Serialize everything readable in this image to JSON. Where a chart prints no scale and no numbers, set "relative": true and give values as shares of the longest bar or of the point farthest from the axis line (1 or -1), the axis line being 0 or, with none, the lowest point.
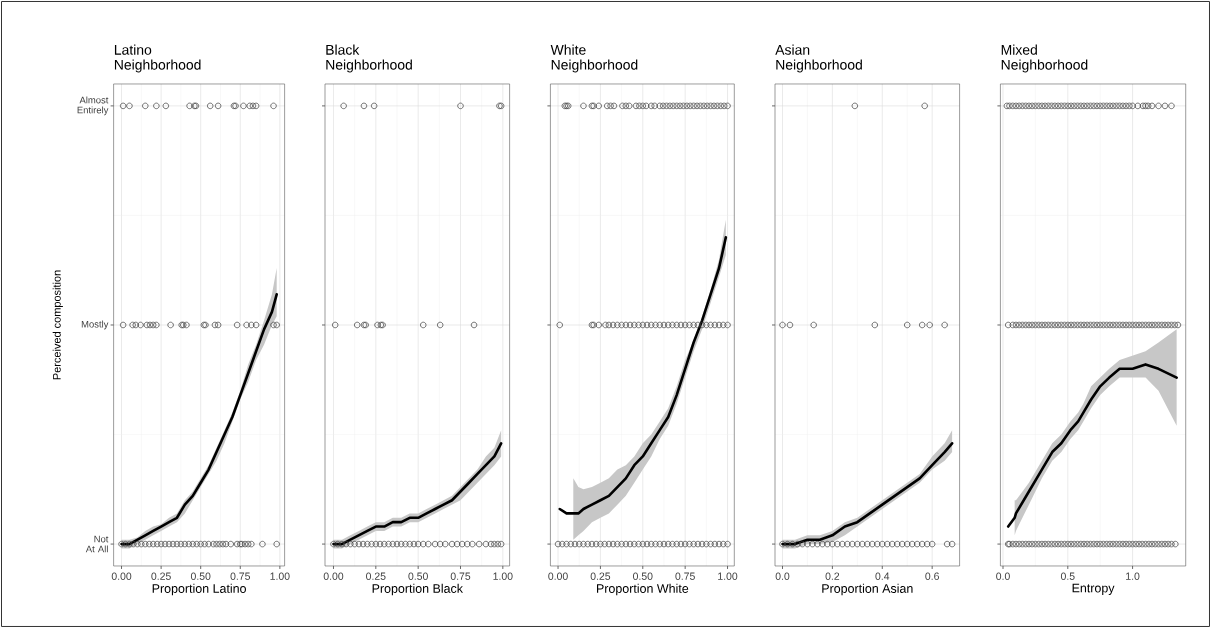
{
  "chart_data": [
    {
      "type": "scatter",
      "title": "Latino Neighborhood",
      "xlabel": "Proportion Latino",
      "ylabel": "Perceived composition",
      "xlim": [
        -0.05,
        1.03
      ],
      "xticks": [
        {
          "value": 0,
          "label": "0.00"
        },
        {
          "value": 0.25,
          "label": "0.25"
        },
        {
          "value": 0.5,
          "label": "0.50"
        },
        {
          "value": 0.75,
          "label": "0.75"
        },
        {
          "value": 1,
          "label": "1.00"
        }
      ],
      "relative": true,
      "annotations": [
        "Not At All",
        "Mostly",
        "Almost Entirely"
      ],
      "grid": true,
      "marker": "circle",
      "series": [
        {
          "type": "scatter",
          "color": "#3c3c3c",
          "x": [
            0,
            0.025,
            0.05,
            0.075,
            0.1,
            0.125,
            0.15,
            0.175,
            0.2,
            0.225,
            0.25,
            0.275,
            0.3,
            0.325,
            0.35,
            0.375,
            0.4,
            0.425,
            0.45,
            0.475,
            0.5,
            0.525,
            0.55,
            0.58,
            0.6,
            0.62,
            0.64,
            0.66,
            0.69,
            0.73,
            0.75,
            0.76,
            0.78,
            0.8,
            0.82,
            0.89,
            0.98
          ],
          "values": [
            0,
            0,
            0,
            0,
            0,
            0,
            0,
            0,
            0,
            0,
            0,
            0,
            0,
            0,
            0,
            0,
            0,
            0,
            0,
            0,
            0,
            0,
            0,
            0,
            0,
            0,
            0,
            0,
            0,
            0,
            0,
            0,
            0,
            0,
            0,
            0,
            0
          ]
        },
        {
          "type": "scatter",
          "color": "#3c3c3c",
          "x": [
            0.01,
            0.07,
            0.09,
            0.12,
            0.16,
            0.18,
            0.2,
            0.22,
            0.31,
            0.38,
            0.39,
            0.41,
            0.52,
            0.53,
            0.59,
            0.61,
            0.73,
            0.79,
            0.82,
            0.85,
            0.96,
            0.98
          ],
          "values": [
            0.5,
            0.5,
            0.5,
            0.5,
            0.5,
            0.5,
            0.5,
            0.5,
            0.5,
            0.5,
            0.5,
            0.5,
            0.5,
            0.5,
            0.5,
            0.5,
            0.5,
            0.5,
            0.5,
            0.5,
            0.5,
            0.5
          ]
        },
        {
          "type": "scatter",
          "color": "#3c3c3c",
          "x": [
            0.01,
            0.05,
            0.15,
            0.22,
            0.28,
            0.43,
            0.46,
            0.47,
            0.56,
            0.61,
            0.71,
            0.72,
            0.77,
            0.81,
            0.83,
            0.85,
            0.96
          ],
          "values": [
            1,
            1,
            1,
            1,
            1,
            1,
            1,
            1,
            1,
            1,
            1,
            1,
            1,
            1,
            1,
            1,
            1
          ]
        },
        {
          "type": "line",
          "color": "#000000",
          "marker": "none",
          "x": [
            0,
            0.05,
            0.1,
            0.15,
            0.2,
            0.25,
            0.3,
            0.35,
            0.4,
            0.45,
            0.5,
            0.55,
            0.6,
            0.65,
            0.7,
            0.75,
            0.8,
            0.85,
            0.9,
            0.95,
            0.98
          ],
          "values": [
            0,
            0,
            0.01,
            0.02,
            0.03,
            0.04,
            0.05,
            0.06,
            0.09,
            0.11,
            0.14,
            0.17,
            0.21,
            0.25,
            0.29,
            0.34,
            0.39,
            0.44,
            0.49,
            0.53,
            0.57
          ],
          "lower": [
            -0.01,
            -0.01,
            0,
            0.01,
            0.02,
            0.03,
            0.04,
            0.05,
            0.07,
            0.1,
            0.13,
            0.16,
            0.19,
            0.23,
            0.28,
            0.33,
            0.37,
            0.42,
            0.455,
            0.5,
            0.52
          ],
          "upper": [
            0.01,
            0.01,
            0.015,
            0.03,
            0.04,
            0.045,
            0.06,
            0.07,
            0.1,
            0.12,
            0.15,
            0.18,
            0.22,
            0.26,
            0.3,
            0.35,
            0.41,
            0.455,
            0.51,
            0.57,
            0.63
          ]
        }
      ]
    },
    {
      "type": "scatter",
      "title": "Black Neighborhood",
      "xlabel": "Proportion Black",
      "xlim": [
        -0.05,
        1.04
      ],
      "xticks": [
        {
          "value": 0,
          "label": "0.00"
        },
        {
          "value": 0.25,
          "label": "0.25"
        },
        {
          "value": 0.5,
          "label": "0.50"
        },
        {
          "value": 0.75,
          "label": "0.75"
        },
        {
          "value": 1,
          "label": "1.00"
        }
      ],
      "relative": true,
      "tick_labels": "x",
      "grid": true,
      "marker": "circle",
      "series": [
        {
          "type": "scatter",
          "color": "#3c3c3c",
          "x": [
            0,
            0.025,
            0.05,
            0.075,
            0.1,
            0.125,
            0.15,
            0.175,
            0.2,
            0.225,
            0.25,
            0.275,
            0.3,
            0.325,
            0.35,
            0.375,
            0.4,
            0.425,
            0.45,
            0.475,
            0.5,
            0.53,
            0.56,
            0.6,
            0.63,
            0.66,
            0.7,
            0.73,
            0.76,
            0.79,
            0.82,
            0.86,
            0.9,
            0.93,
            0.95,
            0.97,
            0.99
          ],
          "values": [
            0,
            0,
            0,
            0,
            0,
            0,
            0,
            0,
            0,
            0,
            0,
            0,
            0,
            0,
            0,
            0,
            0,
            0,
            0,
            0,
            0,
            0,
            0,
            0,
            0,
            0,
            0,
            0,
            0,
            0,
            0,
            0,
            0,
            0,
            0,
            0,
            0
          ]
        },
        {
          "type": "scatter",
          "color": "#3c3c3c",
          "x": [
            0.01,
            0.14,
            0.18,
            0.19,
            0.26,
            0.28,
            0.29,
            0.53,
            0.63,
            0.83
          ],
          "values": [
            0.5,
            0.5,
            0.5,
            0.5,
            0.5,
            0.5,
            0.5,
            0.5,
            0.5,
            0.5
          ]
        },
        {
          "type": "scatter",
          "color": "#3c3c3c",
          "x": [
            0.06,
            0.18,
            0.24,
            0.75,
            0.98,
            0.99
          ],
          "values": [
            1,
            1,
            1,
            1,
            1,
            1
          ]
        },
        {
          "type": "line",
          "color": "#000000",
          "marker": "none",
          "x": [
            0,
            0.05,
            0.1,
            0.15,
            0.2,
            0.25,
            0.3,
            0.35,
            0.4,
            0.45,
            0.5,
            0.55,
            0.6,
            0.65,
            0.7,
            0.75,
            0.8,
            0.85,
            0.9,
            0.95,
            0.99
          ],
          "values": [
            0,
            0,
            0.01,
            0.02,
            0.03,
            0.04,
            0.04,
            0.05,
            0.05,
            0.06,
            0.06,
            0.07,
            0.08,
            0.09,
            0.1,
            0.12,
            0.14,
            0.16,
            0.18,
            0.2,
            0.23
          ],
          "lower": [
            -0.01,
            -0.01,
            0,
            0.01,
            0.02,
            0.03,
            0.03,
            0.04,
            0.04,
            0.05,
            0.05,
            0.06,
            0.07,
            0.08,
            0.09,
            0.1,
            0.12,
            0.14,
            0.16,
            0.18,
            0.2
          ],
          "upper": [
            0.01,
            0.01,
            0.02,
            0.03,
            0.04,
            0.05,
            0.05,
            0.06,
            0.06,
            0.07,
            0.07,
            0.08,
            0.09,
            0.1,
            0.11,
            0.13,
            0.15,
            0.17,
            0.2,
            0.22,
            0.26
          ]
        }
      ]
    },
    {
      "type": "scatter",
      "title": "White Neighborhood",
      "xlabel": "Proportion White",
      "xlim": [
        -0.045,
        1.04
      ],
      "xticks": [
        {
          "value": 0,
          "label": "0.00"
        },
        {
          "value": 0.25,
          "label": "0.25"
        },
        {
          "value": 0.5,
          "label": "0.50"
        },
        {
          "value": 0.75,
          "label": "0.75"
        },
        {
          "value": 1,
          "label": "1.00"
        }
      ],
      "relative": true,
      "tick_labels": "x",
      "grid": true,
      "marker": "circle",
      "series": [
        {
          "type": "scatter",
          "color": "#3c3c3c",
          "x": [
            0,
            0.025,
            0.05,
            0.075,
            0.1,
            0.125,
            0.15,
            0.175,
            0.2,
            0.225,
            0.25,
            0.275,
            0.3,
            0.325,
            0.35,
            0.375,
            0.4,
            0.425,
            0.45,
            0.475,
            0.5,
            0.525,
            0.55,
            0.575,
            0.6,
            0.625,
            0.65,
            0.675,
            0.7,
            0.725,
            0.75,
            0.775,
            0.8,
            0.825,
            0.85,
            0.875,
            0.9,
            0.925,
            0.95,
            0.975,
            1.0
          ],
          "values": [
            0,
            0,
            0,
            0,
            0,
            0,
            0,
            0,
            0,
            0,
            0,
            0,
            0,
            0,
            0,
            0,
            0,
            0,
            0,
            0,
            0,
            0,
            0,
            0,
            0,
            0,
            0,
            0,
            0,
            0,
            0,
            0,
            0,
            0,
            0,
            0,
            0,
            0,
            0,
            0,
            0
          ]
        },
        {
          "type": "scatter",
          "color": "#3c3c3c",
          "x": [
            0.01,
            0.2,
            0.21,
            0.24,
            0.28,
            0.3,
            0.325,
            0.35,
            0.375,
            0.4,
            0.425,
            0.45,
            0.475,
            0.5,
            0.525,
            0.55,
            0.575,
            0.6,
            0.625,
            0.65,
            0.675,
            0.7,
            0.725,
            0.75,
            0.775,
            0.8,
            0.825,
            0.85,
            0.875,
            0.9,
            0.925,
            0.95,
            0.975,
            1.0
          ],
          "values": [
            0.5,
            0.5,
            0.5,
            0.5,
            0.5,
            0.5,
            0.5,
            0.5,
            0.5,
            0.5,
            0.5,
            0.5,
            0.5,
            0.5,
            0.5,
            0.5,
            0.5,
            0.5,
            0.5,
            0.5,
            0.5,
            0.5,
            0.5,
            0.5,
            0.5,
            0.5,
            0.5,
            0.5,
            0.5,
            0.5,
            0.5,
            0.5,
            0.5,
            0.5
          ]
        },
        {
          "type": "scatter",
          "color": "#3c3c3c",
          "x": [
            0.04,
            0.05,
            0.06,
            0.15,
            0.2,
            0.21,
            0.24,
            0.29,
            0.31,
            0.33,
            0.38,
            0.4,
            0.42,
            0.46,
            0.48,
            0.5,
            0.52,
            0.55,
            0.57,
            0.6,
            0.62,
            0.64,
            0.66,
            0.68,
            0.7,
            0.72,
            0.74,
            0.76,
            0.78,
            0.8,
            0.82,
            0.84,
            0.86,
            0.88,
            0.9,
            0.92,
            0.94,
            0.96,
            0.98,
            1.0
          ],
          "values": [
            1,
            1,
            1,
            1,
            1,
            1,
            1,
            1,
            1,
            1,
            1,
            1,
            1,
            1,
            1,
            1,
            1,
            1,
            1,
            1,
            1,
            1,
            1,
            1,
            1,
            1,
            1,
            1,
            1,
            1,
            1,
            1,
            1,
            1,
            1,
            1,
            1,
            1,
            1,
            1
          ]
        },
        {
          "type": "line",
          "color": "#000000",
          "marker": "none",
          "x": [
            0.01,
            0.05,
            0.09,
            0.12,
            0.15,
            0.2,
            0.25,
            0.3,
            0.35,
            0.4,
            0.45,
            0.5,
            0.55,
            0.6,
            0.65,
            0.7,
            0.75,
            0.8,
            0.85,
            0.9,
            0.95,
            0.99
          ],
          "values": [
            0.08,
            0.07,
            0.07,
            0.07,
            0.08,
            0.09,
            0.1,
            0.11,
            0.13,
            0.15,
            0.18,
            0.2,
            0.23,
            0.26,
            0.29,
            0.34,
            0.4,
            0.46,
            0.51,
            0.57,
            0.63,
            0.7
          ],
          "lower": [
            null,
            null,
            0.01,
            0.02,
            0.03,
            0.05,
            0.06,
            0.07,
            0.09,
            0.11,
            0.14,
            0.17,
            0.2,
            0.24,
            0.27,
            0.32,
            0.38,
            0.44,
            0.49,
            0.55,
            0.61,
            0.66
          ],
          "upper": [
            null,
            null,
            0.15,
            0.13,
            0.125,
            0.13,
            0.14,
            0.15,
            0.17,
            0.18,
            0.2,
            0.23,
            0.25,
            0.28,
            0.31,
            0.36,
            0.42,
            0.465,
            0.52,
            0.58,
            0.65,
            0.74
          ]
        }
      ]
    },
    {
      "type": "scatter",
      "title": "Asian Neighborhood",
      "xlabel": "Proportion Asian",
      "xlim": [
        -0.03,
        0.71
      ],
      "xticks": [
        {
          "value": 0,
          "label": "0.0"
        },
        {
          "value": 0.2,
          "label": "0.2"
        },
        {
          "value": 0.4,
          "label": "0.4"
        },
        {
          "value": 0.6,
          "label": "0.6"
        }
      ],
      "relative": true,
      "tick_labels": "x",
      "grid": true,
      "marker": "circle",
      "series": [
        {
          "type": "scatter",
          "color": "#3c3c3c",
          "x": [
            0,
            0.02,
            0.04,
            0.06,
            0.08,
            0.1,
            0.12,
            0.14,
            0.16,
            0.18,
            0.2,
            0.22,
            0.24,
            0.26,
            0.28,
            0.3,
            0.32,
            0.34,
            0.36,
            0.38,
            0.4,
            0.42,
            0.44,
            0.46,
            0.48,
            0.5,
            0.52,
            0.54,
            0.56,
            0.58,
            0.6,
            0.66,
            0.68
          ],
          "values": [
            0,
            0,
            0,
            0,
            0,
            0,
            0,
            0,
            0,
            0,
            0,
            0,
            0,
            0,
            0,
            0,
            0,
            0,
            0,
            0,
            0,
            0,
            0,
            0,
            0,
            0,
            0,
            0,
            0,
            0,
            0,
            0,
            0
          ]
        },
        {
          "type": "scatter",
          "color": "#3c3c3c",
          "x": [
            0,
            0.03,
            0.125,
            0.37,
            0.5,
            0.56,
            0.59,
            0.65
          ],
          "values": [
            0.5,
            0.5,
            0.5,
            0.5,
            0.5,
            0.5,
            0.5,
            0.5
          ]
        },
        {
          "type": "scatter",
          "color": "#3c3c3c",
          "x": [
            0.29,
            0.57
          ],
          "values": [
            1,
            1
          ]
        },
        {
          "type": "line",
          "color": "#000000",
          "marker": "none",
          "x": [
            0,
            0.05,
            0.1,
            0.15,
            0.2,
            0.25,
            0.3,
            0.35,
            0.4,
            0.45,
            0.5,
            0.55,
            0.6,
            0.65,
            0.68
          ],
          "values": [
            0,
            0,
            0.01,
            0.01,
            0.02,
            0.04,
            0.05,
            0.07,
            0.09,
            0.11,
            0.13,
            0.15,
            0.18,
            0.21,
            0.23
          ],
          "lower": [
            -0.01,
            -0.01,
            0,
            0,
            0.005,
            0.02,
            0.04,
            0.06,
            0.08,
            0.1,
            0.12,
            0.14,
            0.17,
            0.19,
            0.21
          ],
          "upper": [
            0.01,
            0.01,
            0.02,
            0.02,
            0.03,
            0.05,
            0.06,
            0.08,
            0.1,
            0.12,
            0.14,
            0.16,
            0.2,
            0.23,
            0.26
          ]
        }
      ]
    },
    {
      "type": "scatter",
      "title": "Mixed Neighborhood",
      "xlabel": "Entropy",
      "xlim": [
        -0.02,
        1.41
      ],
      "xticks": [
        {
          "value": 0,
          "label": "0.0"
        },
        {
          "value": 0.5,
          "label": "0.5"
        },
        {
          "value": 1,
          "label": "1.0"
        }
      ],
      "relative": true,
      "tick_labels": "x",
      "grid": true,
      "marker": "circle",
      "series": [
        {
          "type": "scatter",
          "color": "#3c3c3c",
          "x": [
            0.04,
            0.05,
            0.075,
            0.1,
            0.125,
            0.15,
            0.175,
            0.2,
            0.225,
            0.25,
            0.275,
            0.3,
            0.325,
            0.35,
            0.375,
            0.4,
            0.425,
            0.45,
            0.475,
            0.5,
            0.525,
            0.55,
            0.575,
            0.6,
            0.625,
            0.65,
            0.675,
            0.7,
            0.725,
            0.75,
            0.775,
            0.8,
            0.825,
            0.85,
            0.875,
            0.9,
            0.925,
            0.95,
            0.975,
            1.0,
            1.025,
            1.05,
            1.075,
            1.1,
            1.125,
            1.15,
            1.175,
            1.2,
            1.225,
            1.25,
            1.275,
            1.3,
            1.33
          ],
          "values": [
            0,
            0,
            0,
            0,
            0,
            0,
            0,
            0,
            0,
            0,
            0,
            0,
            0,
            0,
            0,
            0,
            0,
            0,
            0,
            0,
            0,
            0,
            0,
            0,
            0,
            0,
            0,
            0,
            0,
            0,
            0,
            0,
            0,
            0,
            0,
            0,
            0,
            0,
            0,
            0,
            0,
            0,
            0,
            0,
            0,
            0,
            0,
            0,
            0,
            0,
            0,
            0,
            0
          ]
        },
        {
          "type": "scatter",
          "color": "#3c3c3c",
          "x": [
            0.04,
            0.075,
            0.1,
            0.125,
            0.15,
            0.175,
            0.2,
            0.225,
            0.25,
            0.275,
            0.3,
            0.325,
            0.35,
            0.375,
            0.4,
            0.425,
            0.45,
            0.475,
            0.5,
            0.525,
            0.55,
            0.575,
            0.6,
            0.625,
            0.65,
            0.675,
            0.7,
            0.725,
            0.75,
            0.775,
            0.8,
            0.825,
            0.85,
            0.875,
            0.9,
            0.925,
            0.95,
            0.975,
            1.0,
            1.025,
            1.05,
            1.075,
            1.1,
            1.125,
            1.15,
            1.175,
            1.2,
            1.225,
            1.25,
            1.275,
            1.3,
            1.325,
            1.35
          ],
          "values": [
            0.5,
            0.5,
            0.5,
            0.5,
            0.5,
            0.5,
            0.5,
            0.5,
            0.5,
            0.5,
            0.5,
            0.5,
            0.5,
            0.5,
            0.5,
            0.5,
            0.5,
            0.5,
            0.5,
            0.5,
            0.5,
            0.5,
            0.5,
            0.5,
            0.5,
            0.5,
            0.5,
            0.5,
            0.5,
            0.5,
            0.5,
            0.5,
            0.5,
            0.5,
            0.5,
            0.5,
            0.5,
            0.5,
            0.5,
            0.5,
            0.5,
            0.5,
            0.5,
            0.5,
            0.5,
            0.5,
            0.5,
            0.5,
            0.5,
            0.5,
            0.5,
            0.5,
            0.5
          ]
        },
        {
          "type": "scatter",
          "color": "#3c3c3c",
          "x": [
            0.03,
            0.05,
            0.075,
            0.1,
            0.125,
            0.15,
            0.175,
            0.2,
            0.225,
            0.25,
            0.275,
            0.3,
            0.325,
            0.35,
            0.375,
            0.4,
            0.425,
            0.45,
            0.475,
            0.5,
            0.525,
            0.55,
            0.575,
            0.6,
            0.625,
            0.65,
            0.675,
            0.7,
            0.725,
            0.75,
            0.775,
            0.8,
            0.825,
            0.85,
            0.875,
            0.9,
            0.925,
            0.95,
            0.975,
            1.0,
            1.04,
            1.08,
            1.1,
            1.12,
            1.15,
            1.2,
            1.25,
            1.3
          ],
          "values": [
            1,
            1,
            1,
            1,
            1,
            1,
            1,
            1,
            1,
            1,
            1,
            1,
            1,
            1,
            1,
            1,
            1,
            1,
            1,
            1,
            1,
            1,
            1,
            1,
            1,
            1,
            1,
            1,
            1,
            1,
            1,
            1,
            1,
            1,
            1,
            1,
            1,
            1,
            1,
            1,
            1,
            1,
            1,
            1,
            1,
            1,
            1,
            1
          ]
        },
        {
          "type": "line",
          "color": "#000000",
          "marker": "none",
          "x": [
            0.04,
            0.09,
            0.1,
            0.2,
            0.3,
            0.38,
            0.45,
            0.52,
            0.58,
            0.62,
            0.68,
            0.75,
            0.82,
            0.9,
            1.0,
            1.1,
            1.2,
            1.34
          ],
          "values": [
            0.04,
            0.06,
            0.07,
            0.12,
            0.17,
            0.21,
            0.23,
            0.26,
            0.28,
            0.3,
            0.33,
            0.36,
            0.38,
            0.4,
            0.4,
            0.41,
            0.4,
            0.38
          ],
          "lower": [
            null,
            0.02,
            0.03,
            0.09,
            0.15,
            0.19,
            0.21,
            0.24,
            0.26,
            0.28,
            0.31,
            0.34,
            0.36,
            0.38,
            0.38,
            0.38,
            0.35,
            0.27
          ],
          "upper": [
            null,
            0.1,
            0.1,
            0.14,
            0.19,
            0.23,
            0.25,
            0.28,
            0.3,
            0.32,
            0.36,
            0.38,
            0.4,
            0.42,
            0.43,
            0.44,
            0.46,
            0.49
          ]
        }
      ]
    }
  ]
}
